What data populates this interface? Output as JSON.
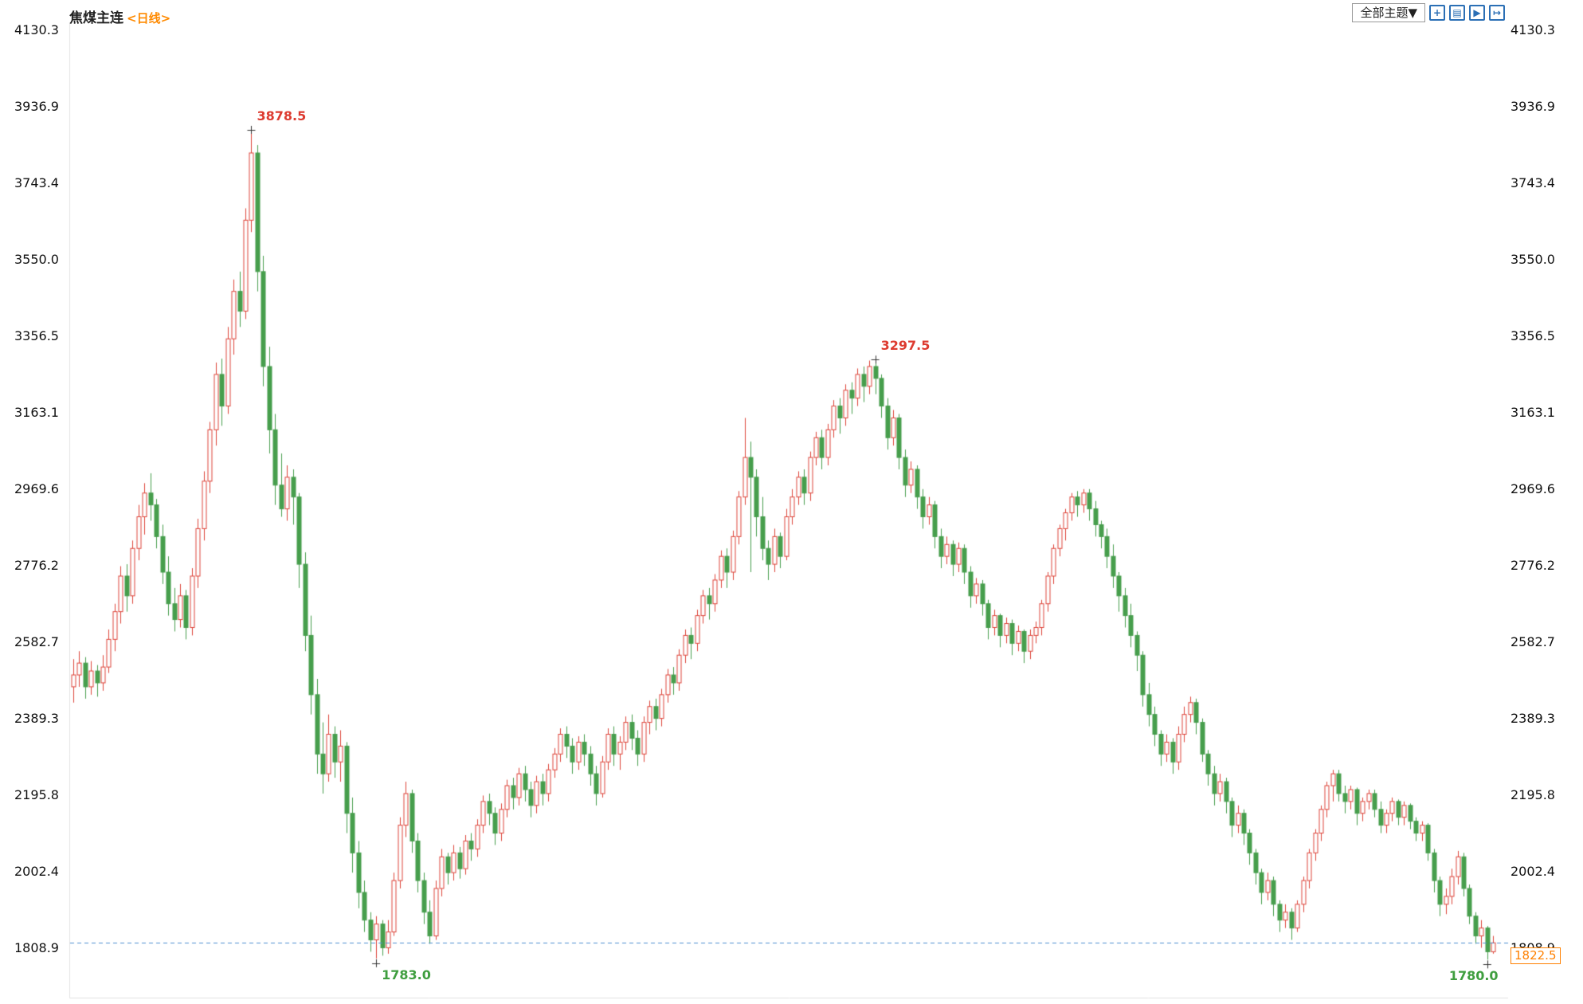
{
  "header": {
    "title": "焦煤主连",
    "period": "<日线>",
    "theme_button_label": "全部主题▼"
  },
  "toolbar": {
    "icons": [
      {
        "name": "pan-icon",
        "glyph": "+"
      },
      {
        "name": "kline-panel-icon",
        "glyph": "▤"
      },
      {
        "name": "kline-play-icon",
        "glyph": "▶"
      },
      {
        "name": "exit-fullscreen-icon",
        "glyph": "↦"
      }
    ]
  },
  "colors": {
    "up": "#dd4338",
    "down": "#479e4d",
    "high_label": "#dd3b30",
    "low_label": "#3f9e3f",
    "dashed_line": "#4f8fd0",
    "price_tag": "#ff8000",
    "axis_text": "#111111",
    "accent_orange": "#ff8a00",
    "icon_blue": "#2b6fb5"
  },
  "chart_data": {
    "type": "candlestick",
    "instrument": "焦煤主连",
    "period": "日线",
    "y_ticks": [
      4130.3,
      3936.9,
      3743.4,
      3550.0,
      3356.5,
      3163.1,
      2969.6,
      2776.2,
      2582.7,
      2389.3,
      2195.8,
      2002.4,
      1808.9
    ],
    "current_price": 1822.5,
    "current_price_label": "1822.5",
    "legend_position": "none",
    "grid": false,
    "markers": [
      {
        "type": "high",
        "index": 30,
        "price": 3878.5,
        "label": "3878.5"
      },
      {
        "type": "low",
        "index": 51,
        "price": 1783.0,
        "label": "1783.0"
      },
      {
        "type": "high",
        "index": 135,
        "price": 3297.5,
        "label": "3297.5"
      },
      {
        "type": "low",
        "index": 238,
        "price": 1780.0,
        "label": "1780.0"
      }
    ],
    "candles": [
      [
        2470,
        2540,
        2430,
        2500
      ],
      [
        2500,
        2560,
        2470,
        2530
      ],
      [
        2530,
        2545,
        2440,
        2470
      ],
      [
        2470,
        2535,
        2450,
        2510
      ],
      [
        2510,
        2525,
        2445,
        2480
      ],
      [
        2480,
        2550,
        2460,
        2520
      ],
      [
        2520,
        2615,
        2505,
        2590
      ],
      [
        2590,
        2680,
        2560,
        2660
      ],
      [
        2660,
        2775,
        2630,
        2750
      ],
      [
        2750,
        2780,
        2660,
        2700
      ],
      [
        2700,
        2840,
        2680,
        2820
      ],
      [
        2820,
        2930,
        2790,
        2900
      ],
      [
        2900,
        2985,
        2855,
        2960
      ],
      [
        2960,
        3010,
        2890,
        2930
      ],
      [
        2930,
        2945,
        2820,
        2850
      ],
      [
        2850,
        2880,
        2730,
        2760
      ],
      [
        2760,
        2800,
        2650,
        2680
      ],
      [
        2680,
        2720,
        2610,
        2640
      ],
      [
        2640,
        2730,
        2620,
        2700
      ],
      [
        2700,
        2715,
        2590,
        2620
      ],
      [
        2620,
        2770,
        2600,
        2750
      ],
      [
        2750,
        2895,
        2720,
        2870
      ],
      [
        2870,
        3015,
        2840,
        2990
      ],
      [
        2990,
        3140,
        2960,
        3120
      ],
      [
        3120,
        3290,
        3080,
        3260
      ],
      [
        3260,
        3300,
        3130,
        3180
      ],
      [
        3180,
        3380,
        3160,
        3350
      ],
      [
        3350,
        3500,
        3310,
        3470
      ],
      [
        3470,
        3520,
        3380,
        3420
      ],
      [
        3420,
        3680,
        3400,
        3650
      ],
      [
        3650,
        3878.5,
        3620,
        3820
      ],
      [
        3820,
        3840,
        3470,
        3520
      ],
      [
        3520,
        3560,
        3230,
        3280
      ],
      [
        3280,
        3330,
        3060,
        3120
      ],
      [
        3120,
        3160,
        2930,
        2980
      ],
      [
        2980,
        3060,
        2900,
        2920
      ],
      [
        2920,
        3030,
        2890,
        3000
      ],
      [
        3000,
        3020,
        2880,
        2950
      ],
      [
        2950,
        2960,
        2720,
        2780
      ],
      [
        2780,
        2810,
        2560,
        2600
      ],
      [
        2600,
        2650,
        2400,
        2450
      ],
      [
        2450,
        2490,
        2250,
        2300
      ],
      [
        2300,
        2380,
        2200,
        2250
      ],
      [
        2250,
        2400,
        2230,
        2350
      ],
      [
        2350,
        2370,
        2240,
        2280
      ],
      [
        2280,
        2360,
        2230,
        2320
      ],
      [
        2320,
        2330,
        2100,
        2150
      ],
      [
        2150,
        2190,
        2000,
        2050
      ],
      [
        2050,
        2080,
        1910,
        1950
      ],
      [
        1950,
        1980,
        1850,
        1880
      ],
      [
        1880,
        1900,
        1800,
        1830
      ],
      [
        1830,
        1890,
        1783,
        1870
      ],
      [
        1870,
        1880,
        1790,
        1810
      ],
      [
        1810,
        1880,
        1795,
        1850
      ],
      [
        1850,
        2000,
        1840,
        1980
      ],
      [
        1980,
        2140,
        1960,
        2120
      ],
      [
        2120,
        2230,
        2090,
        2200
      ],
      [
        2200,
        2210,
        2050,
        2080
      ],
      [
        2080,
        2100,
        1950,
        1980
      ],
      [
        1980,
        2000,
        1870,
        1900
      ],
      [
        1900,
        1930,
        1820,
        1840
      ],
      [
        1840,
        1980,
        1830,
        1960
      ],
      [
        1960,
        2060,
        1940,
        2040
      ],
      [
        2040,
        2050,
        1970,
        2000
      ],
      [
        2000,
        2070,
        1980,
        2050
      ],
      [
        2050,
        2065,
        1985,
        2010
      ],
      [
        2010,
        2095,
        1995,
        2080
      ],
      [
        2080,
        2100,
        2030,
        2060
      ],
      [
        2060,
        2135,
        2040,
        2120
      ],
      [
        2120,
        2195,
        2100,
        2180
      ],
      [
        2180,
        2200,
        2120,
        2150
      ],
      [
        2150,
        2165,
        2070,
        2100
      ],
      [
        2100,
        2175,
        2080,
        2160
      ],
      [
        2160,
        2235,
        2140,
        2220
      ],
      [
        2220,
        2240,
        2160,
        2190
      ],
      [
        2190,
        2265,
        2170,
        2250
      ],
      [
        2250,
        2270,
        2180,
        2210
      ],
      [
        2210,
        2230,
        2140,
        2170
      ],
      [
        2170,
        2245,
        2150,
        2230
      ],
      [
        2230,
        2250,
        2170,
        2200
      ],
      [
        2200,
        2275,
        2180,
        2260
      ],
      [
        2260,
        2315,
        2240,
        2300
      ],
      [
        2300,
        2365,
        2280,
        2350
      ],
      [
        2350,
        2370,
        2290,
        2320
      ],
      [
        2320,
        2340,
        2250,
        2280
      ],
      [
        2280,
        2345,
        2260,
        2330
      ],
      [
        2330,
        2350,
        2270,
        2300
      ],
      [
        2300,
        2320,
        2220,
        2250
      ],
      [
        2250,
        2270,
        2170,
        2200
      ],
      [
        2200,
        2295,
        2190,
        2280
      ],
      [
        2280,
        2365,
        2260,
        2350
      ],
      [
        2350,
        2370,
        2270,
        2300
      ],
      [
        2300,
        2345,
        2260,
        2330
      ],
      [
        2330,
        2395,
        2310,
        2380
      ],
      [
        2380,
        2400,
        2310,
        2340
      ],
      [
        2340,
        2360,
        2270,
        2300
      ],
      [
        2300,
        2395,
        2280,
        2380
      ],
      [
        2380,
        2435,
        2350,
        2420
      ],
      [
        2420,
        2440,
        2360,
        2390
      ],
      [
        2390,
        2465,
        2370,
        2450
      ],
      [
        2450,
        2515,
        2430,
        2500
      ],
      [
        2500,
        2520,
        2450,
        2480
      ],
      [
        2480,
        2565,
        2460,
        2550
      ],
      [
        2550,
        2615,
        2530,
        2600
      ],
      [
        2600,
        2620,
        2540,
        2580
      ],
      [
        2580,
        2665,
        2560,
        2650
      ],
      [
        2650,
        2715,
        2630,
        2700
      ],
      [
        2700,
        2720,
        2640,
        2680
      ],
      [
        2680,
        2755,
        2660,
        2740
      ],
      [
        2740,
        2815,
        2720,
        2800
      ],
      [
        2800,
        2820,
        2720,
        2760
      ],
      [
        2760,
        2865,
        2740,
        2850
      ],
      [
        2850,
        2965,
        2830,
        2950
      ],
      [
        2950,
        3150,
        2930,
        3050
      ],
      [
        3050,
        3090,
        2760,
        3000
      ],
      [
        3000,
        3020,
        2850,
        2900
      ],
      [
        2900,
        2950,
        2790,
        2820
      ],
      [
        2820,
        2840,
        2740,
        2780
      ],
      [
        2780,
        2870,
        2760,
        2850
      ],
      [
        2850,
        2860,
        2770,
        2800
      ],
      [
        2800,
        2920,
        2790,
        2900
      ],
      [
        2900,
        2970,
        2880,
        2950
      ],
      [
        2950,
        3015,
        2930,
        3000
      ],
      [
        3000,
        3020,
        2930,
        2960
      ],
      [
        2960,
        3065,
        2940,
        3050
      ],
      [
        3050,
        3115,
        3030,
        3100
      ],
      [
        3100,
        3120,
        3020,
        3050
      ],
      [
        3050,
        3135,
        3030,
        3120
      ],
      [
        3120,
        3195,
        3100,
        3180
      ],
      [
        3180,
        3200,
        3110,
        3150
      ],
      [
        3150,
        3235,
        3130,
        3220
      ],
      [
        3220,
        3240,
        3160,
        3200
      ],
      [
        3200,
        3275,
        3180,
        3260
      ],
      [
        3260,
        3280,
        3190,
        3230
      ],
      [
        3230,
        3295,
        3210,
        3280
      ],
      [
        3280,
        3297.5,
        3210,
        3250
      ],
      [
        3250,
        3260,
        3150,
        3180
      ],
      [
        3180,
        3200,
        3070,
        3100
      ],
      [
        3100,
        3170,
        3080,
        3150
      ],
      [
        3150,
        3160,
        3020,
        3050
      ],
      [
        3050,
        3070,
        2950,
        2980
      ],
      [
        2980,
        3040,
        2960,
        3020
      ],
      [
        3020,
        3030,
        2920,
        2950
      ],
      [
        2950,
        2970,
        2870,
        2900
      ],
      [
        2900,
        2950,
        2880,
        2930
      ],
      [
        2930,
        2940,
        2820,
        2850
      ],
      [
        2850,
        2870,
        2770,
        2800
      ],
      [
        2800,
        2850,
        2780,
        2830
      ],
      [
        2830,
        2840,
        2750,
        2780
      ],
      [
        2780,
        2835,
        2760,
        2820
      ],
      [
        2820,
        2830,
        2730,
        2760
      ],
      [
        2760,
        2775,
        2670,
        2700
      ],
      [
        2700,
        2745,
        2680,
        2730
      ],
      [
        2730,
        2740,
        2650,
        2680
      ],
      [
        2680,
        2690,
        2590,
        2620
      ],
      [
        2620,
        2665,
        2600,
        2650
      ],
      [
        2650,
        2655,
        2570,
        2600
      ],
      [
        2600,
        2645,
        2580,
        2630
      ],
      [
        2630,
        2640,
        2550,
        2580
      ],
      [
        2580,
        2625,
        2560,
        2610
      ],
      [
        2610,
        2615,
        2530,
        2560
      ],
      [
        2560,
        2615,
        2540,
        2600
      ],
      [
        2600,
        2635,
        2580,
        2620
      ],
      [
        2620,
        2690,
        2600,
        2680
      ],
      [
        2680,
        2760,
        2660,
        2750
      ],
      [
        2750,
        2830,
        2730,
        2820
      ],
      [
        2820,
        2880,
        2800,
        2870
      ],
      [
        2870,
        2920,
        2840,
        2910
      ],
      [
        2910,
        2960,
        2890,
        2950
      ],
      [
        2950,
        2965,
        2900,
        2930
      ],
      [
        2930,
        2970,
        2910,
        2960
      ],
      [
        2960,
        2970,
        2890,
        2920
      ],
      [
        2920,
        2940,
        2850,
        2880
      ],
      [
        2880,
        2890,
        2820,
        2850
      ],
      [
        2850,
        2870,
        2770,
        2800
      ],
      [
        2800,
        2830,
        2720,
        2750
      ],
      [
        2750,
        2760,
        2660,
        2700
      ],
      [
        2700,
        2720,
        2620,
        2650
      ],
      [
        2650,
        2680,
        2570,
        2600
      ],
      [
        2600,
        2610,
        2510,
        2550
      ],
      [
        2550,
        2560,
        2420,
        2450
      ],
      [
        2450,
        2480,
        2370,
        2400
      ],
      [
        2400,
        2420,
        2320,
        2350
      ],
      [
        2350,
        2360,
        2270,
        2300
      ],
      [
        2300,
        2350,
        2280,
        2330
      ],
      [
        2330,
        2340,
        2250,
        2280
      ],
      [
        2280,
        2370,
        2260,
        2350
      ],
      [
        2350,
        2420,
        2330,
        2400
      ],
      [
        2400,
        2445,
        2380,
        2430
      ],
      [
        2430,
        2440,
        2350,
        2380
      ],
      [
        2380,
        2390,
        2280,
        2300
      ],
      [
        2300,
        2310,
        2220,
        2250
      ],
      [
        2250,
        2270,
        2170,
        2200
      ],
      [
        2200,
        2250,
        2180,
        2230
      ],
      [
        2230,
        2240,
        2150,
        2180
      ],
      [
        2180,
        2190,
        2090,
        2120
      ],
      [
        2120,
        2170,
        2100,
        2150
      ],
      [
        2150,
        2160,
        2070,
        2100
      ],
      [
        2100,
        2110,
        2020,
        2050
      ],
      [
        2050,
        2060,
        1970,
        2000
      ],
      [
        2000,
        2010,
        1920,
        1950
      ],
      [
        1950,
        2000,
        1930,
        1980
      ],
      [
        1980,
        1990,
        1890,
        1920
      ],
      [
        1920,
        1930,
        1850,
        1880
      ],
      [
        1880,
        1920,
        1860,
        1900
      ],
      [
        1900,
        1910,
        1830,
        1860
      ],
      [
        1860,
        1930,
        1850,
        1920
      ],
      [
        1920,
        1990,
        1900,
        1980
      ],
      [
        1980,
        2060,
        1960,
        2050
      ],
      [
        2050,
        2110,
        2030,
        2100
      ],
      [
        2100,
        2170,
        2080,
        2160
      ],
      [
        2160,
        2230,
        2140,
        2220
      ],
      [
        2220,
        2260,
        2180,
        2250
      ],
      [
        2250,
        2260,
        2180,
        2200
      ],
      [
        2200,
        2220,
        2150,
        2180
      ],
      [
        2180,
        2220,
        2160,
        2210
      ],
      [
        2210,
        2215,
        2120,
        2150
      ],
      [
        2150,
        2190,
        2130,
        2180
      ],
      [
        2180,
        2210,
        2160,
        2200
      ],
      [
        2200,
        2210,
        2140,
        2160
      ],
      [
        2160,
        2180,
        2100,
        2120
      ],
      [
        2120,
        2160,
        2100,
        2150
      ],
      [
        2150,
        2190,
        2130,
        2180
      ],
      [
        2180,
        2185,
        2120,
        2140
      ],
      [
        2140,
        2180,
        2120,
        2170
      ],
      [
        2170,
        2175,
        2110,
        2130
      ],
      [
        2130,
        2140,
        2080,
        2100
      ],
      [
        2100,
        2130,
        2080,
        2120
      ],
      [
        2120,
        2125,
        2030,
        2050
      ],
      [
        2050,
        2060,
        1950,
        1980
      ],
      [
        1980,
        1990,
        1890,
        1920
      ],
      [
        1920,
        1960,
        1895,
        1940
      ],
      [
        1940,
        2010,
        1920,
        1990
      ],
      [
        1990,
        2055,
        1970,
        2040
      ],
      [
        2040,
        2050,
        1940,
        1960
      ],
      [
        1960,
        1970,
        1870,
        1890
      ],
      [
        1890,
        1900,
        1820,
        1840
      ],
      [
        1840,
        1880,
        1810,
        1860
      ],
      [
        1860,
        1865,
        1780,
        1800
      ],
      [
        1800,
        1840,
        1795,
        1822.5
      ]
    ]
  }
}
